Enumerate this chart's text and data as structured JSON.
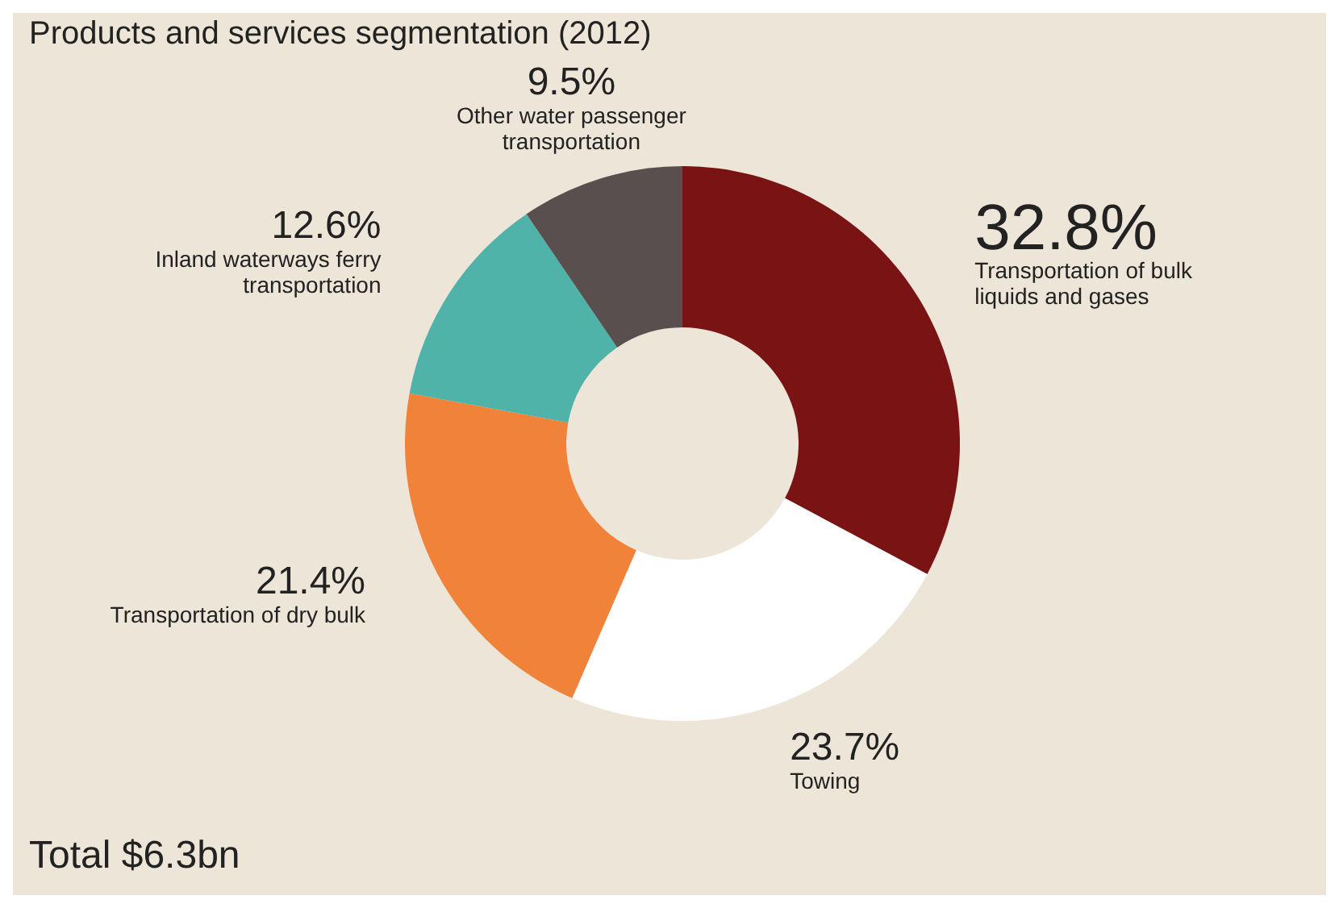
{
  "chart_data": {
    "type": "donut",
    "title": "Products and services segmentation (2012)",
    "categories": [
      "Transportation of bulk liquids and gases",
      "Towing",
      "Transportation of dry bulk",
      "Inland waterways ferry transportation",
      "Other water passenger transportation"
    ],
    "values": [
      32.8,
      23.7,
      21.4,
      12.6,
      9.5
    ],
    "value_labels": [
      "32.8%",
      "23.7%",
      "21.4%",
      "12.6%",
      "9.5%"
    ],
    "colors": [
      "#7a1414",
      "#ffffff",
      "#f0823a",
      "#4fb3a9",
      "#5a4f4f"
    ],
    "annotations": [
      "Total $6.3bn"
    ],
    "legend": false
  }
}
